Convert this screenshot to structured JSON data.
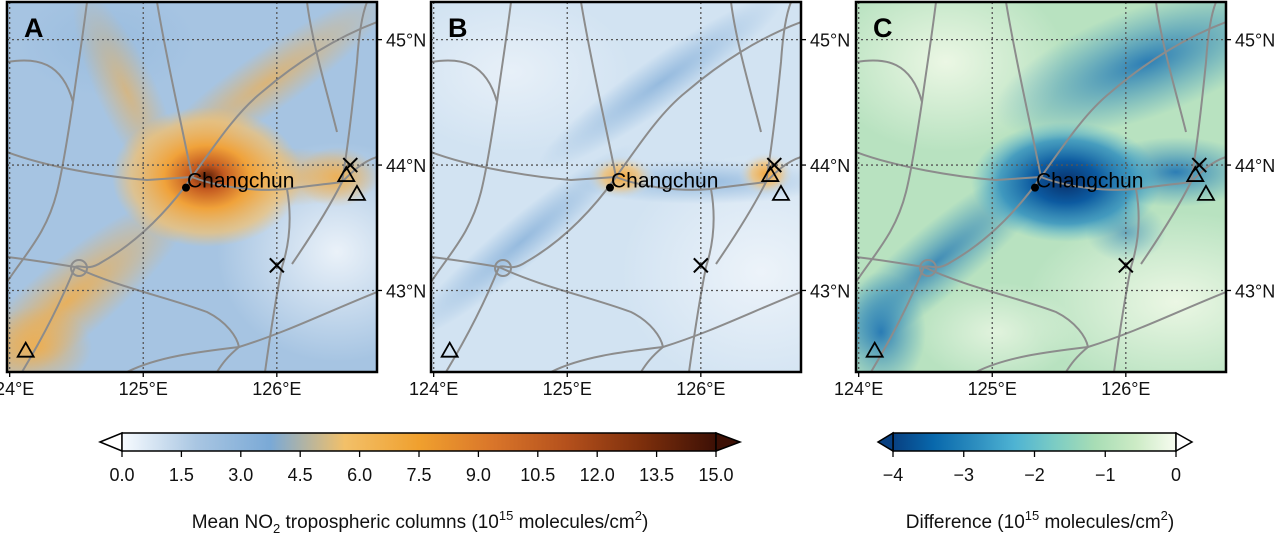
{
  "panels": [
    {
      "letter": "A",
      "x_ticks": [
        "124°E",
        "125°E",
        "126°E"
      ],
      "y_ticks": [
        "45°N",
        "44°N",
        "43°N"
      ],
      "city": "Changchun",
      "colormap": "no2"
    },
    {
      "letter": "B",
      "x_ticks": [
        "124°E",
        "125°E",
        "126°E"
      ],
      "y_ticks": [
        "45°N",
        "44°N",
        "43°N"
      ],
      "city": "Changchun",
      "colormap": "no2"
    },
    {
      "letter": "C",
      "x_ticks": [
        "124°E",
        "125°E",
        "126°E"
      ],
      "y_ticks": [
        "45°N",
        "44°N",
        "43°N"
      ],
      "city": "Changchun",
      "colormap": "diff"
    }
  ],
  "map_extent": {
    "lon": [
      123.98,
      126.75
    ],
    "lat": [
      42.35,
      45.3
    ]
  },
  "grid_lines": {
    "lon": [
      124,
      125,
      126
    ],
    "lat": [
      43,
      44,
      45
    ],
    "style": "dotted"
  },
  "city_location": {
    "lon": 125.32,
    "lat": 43.82
  },
  "markers": {
    "triangles": [
      {
        "lon": 124.12,
        "lat": 42.52
      },
      {
        "lon": 126.52,
        "lat": 43.92
      },
      {
        "lon": 126.6,
        "lat": 43.77
      }
    ],
    "crosses": [
      {
        "lon": 126.55,
        "lat": 44.0
      },
      {
        "lon": 126.0,
        "lat": 43.2
      }
    ]
  },
  "colorbars": {
    "no2": {
      "ticks": [
        "0.0",
        "1.5",
        "3.0",
        "4.5",
        "6.0",
        "7.5",
        "9.0",
        "10.5",
        "12.0",
        "13.5",
        "15.0"
      ],
      "label_pre": "Mean NO",
      "label_sub": "2",
      "label_mid": " tropospheric columns (10",
      "label_sup": "15",
      "label_unit": " molecules/cm",
      "label_sup2": "2",
      "label_end": ")",
      "colors": [
        "#f7fbff",
        "#a9c6e2",
        "#7aa9d6",
        "#f2c069",
        "#f0a02e",
        "#d9752a",
        "#b4501c",
        "#7d2f0c",
        "#3d1005"
      ]
    },
    "diff": {
      "ticks": [
        "−4",
        "−3",
        "−2",
        "−1",
        "0"
      ],
      "label_pre": "Difference (10",
      "label_sup": "15",
      "label_unit": " molecules/cm",
      "label_sup2": "2",
      "label_end": ")",
      "colors": [
        "#084081",
        "#0868ac",
        "#2b8cbe",
        "#4eb3d3",
        "#7bccc4",
        "#a8ddb5",
        "#ccebc5",
        "#f7fcf0"
      ]
    }
  },
  "palette": {
    "road": "#8c8c8c",
    "grid": "#555555",
    "frame": "#000000"
  }
}
